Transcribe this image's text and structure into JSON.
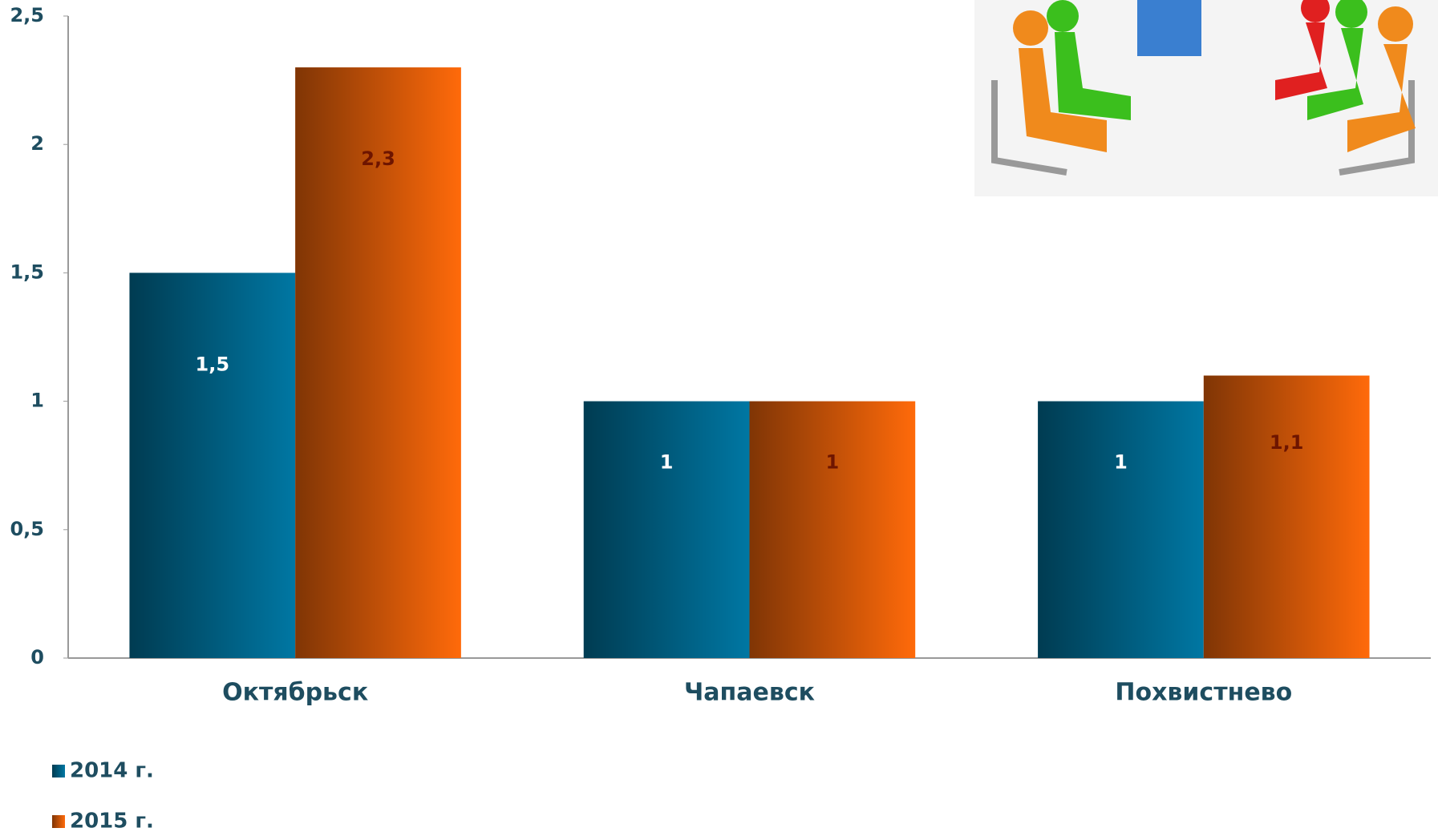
{
  "chart_data": {
    "type": "bar",
    "categories": [
      "Октябрьск",
      "Чапаевск",
      "Похвистнево"
    ],
    "series": [
      {
        "name": "2014 г.",
        "color": "#0077a3",
        "values": [
          1.5,
          1,
          1
        ],
        "value_labels": [
          "1,5",
          "1",
          "1"
        ]
      },
      {
        "name": "2015 г.",
        "color": "#ff6a0a",
        "values": [
          2.3,
          1,
          1.1
        ],
        "value_labels": [
          "2,3",
          "1",
          "1,1"
        ]
      }
    ],
    "ylim": [
      0,
      2.5
    ],
    "yticks": [
      0,
      {
        "value": 0.5,
        "label": "0,5"
      },
      1,
      {
        "value": 1.5,
        "label": "1,5"
      },
      2,
      {
        "value": 2.5,
        "label": "2,5"
      }
    ],
    "grid": false
  }
}
